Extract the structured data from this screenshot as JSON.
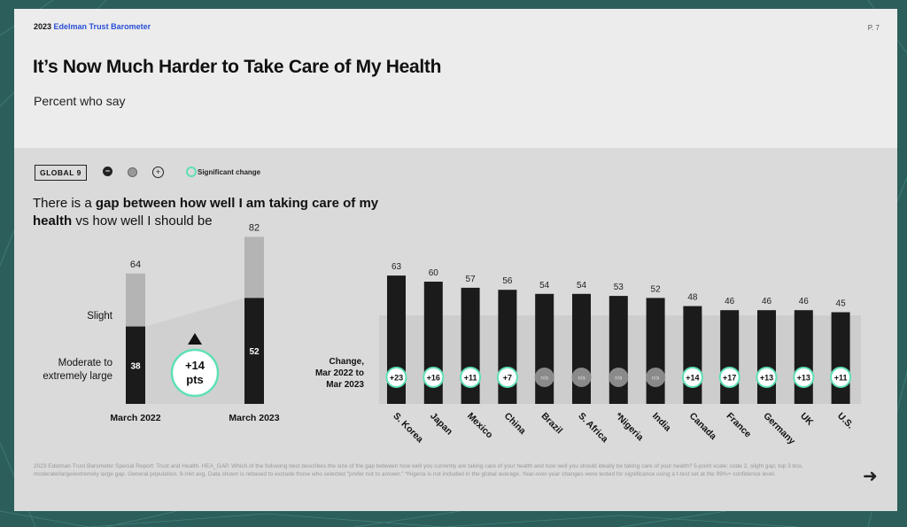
{
  "header": {
    "brand_year": "2023",
    "brand_name": "Edelman Trust Barometer",
    "page": "P. 7"
  },
  "title": "It’s Now Much Harder to Take Care of My Health",
  "subtitle": "Percent who say",
  "legend": {
    "global": "GLOBAL 9",
    "minus": "−",
    "plus": "+",
    "significant": "Significant change"
  },
  "question_pre": "There is a ",
  "question_bold": "gap between how well I am taking care of my health",
  "question_post": " vs how well I should be",
  "footnote": "2023 Edelman Trust Barometer Special Report: Trust and Health. HEA_GAP. Which of the following best describes the size of the gap between how well you currently are taking care of your health and how well you should ideally be taking care of your health? 5-point scale; code 2, slight gap; top 3 box, moderate/large/extremely large gap. General population, 9-mkt avg. Data shown is rebased to exclude those who selected \"prefer not to answer.\" *Nigeria is not included in the global average. Year-over-year changes were tested for significance using a t-test set at the 99%+ confidence level.",
  "colors": {
    "dark": "#1b1b1b",
    "light": "#b4b4b4",
    "accent": "#5fe0b8",
    "na": "#8a8a8a",
    "band": "#cfcfcf"
  },
  "chart_data": [
    {
      "type": "bar",
      "stacked": true,
      "categories": [
        "March 2022",
        "March 2023"
      ],
      "series": [
        {
          "name": "Moderate to extremely large",
          "values": [
            38,
            52
          ]
        },
        {
          "name": "Slight",
          "values": [
            26,
            30
          ]
        }
      ],
      "totals": [
        64,
        82
      ],
      "change": "+14",
      "change_unit": "pts"
    },
    {
      "type": "bar",
      "categories": [
        "S. Korea",
        "Japan",
        "Mexico",
        "China",
        "Brazil",
        "S. Africa",
        "*Nigeria",
        "India",
        "Canada",
        "France",
        "Germany",
        "UK",
        "U.S."
      ],
      "values": [
        63,
        60,
        57,
        56,
        54,
        54,
        53,
        52,
        48,
        46,
        46,
        46,
        45
      ],
      "change_label": "Change, Mar 2022 to Mar 2023",
      "changes": [
        "+23",
        "+16",
        "+11",
        "+7",
        "n/a",
        "n/a",
        "n/a",
        "n/a",
        "+14",
        "+17",
        "+13",
        "+13",
        "+11"
      ],
      "significant": [
        true,
        true,
        true,
        true,
        false,
        false,
        false,
        false,
        true,
        true,
        true,
        true,
        true
      ]
    }
  ]
}
